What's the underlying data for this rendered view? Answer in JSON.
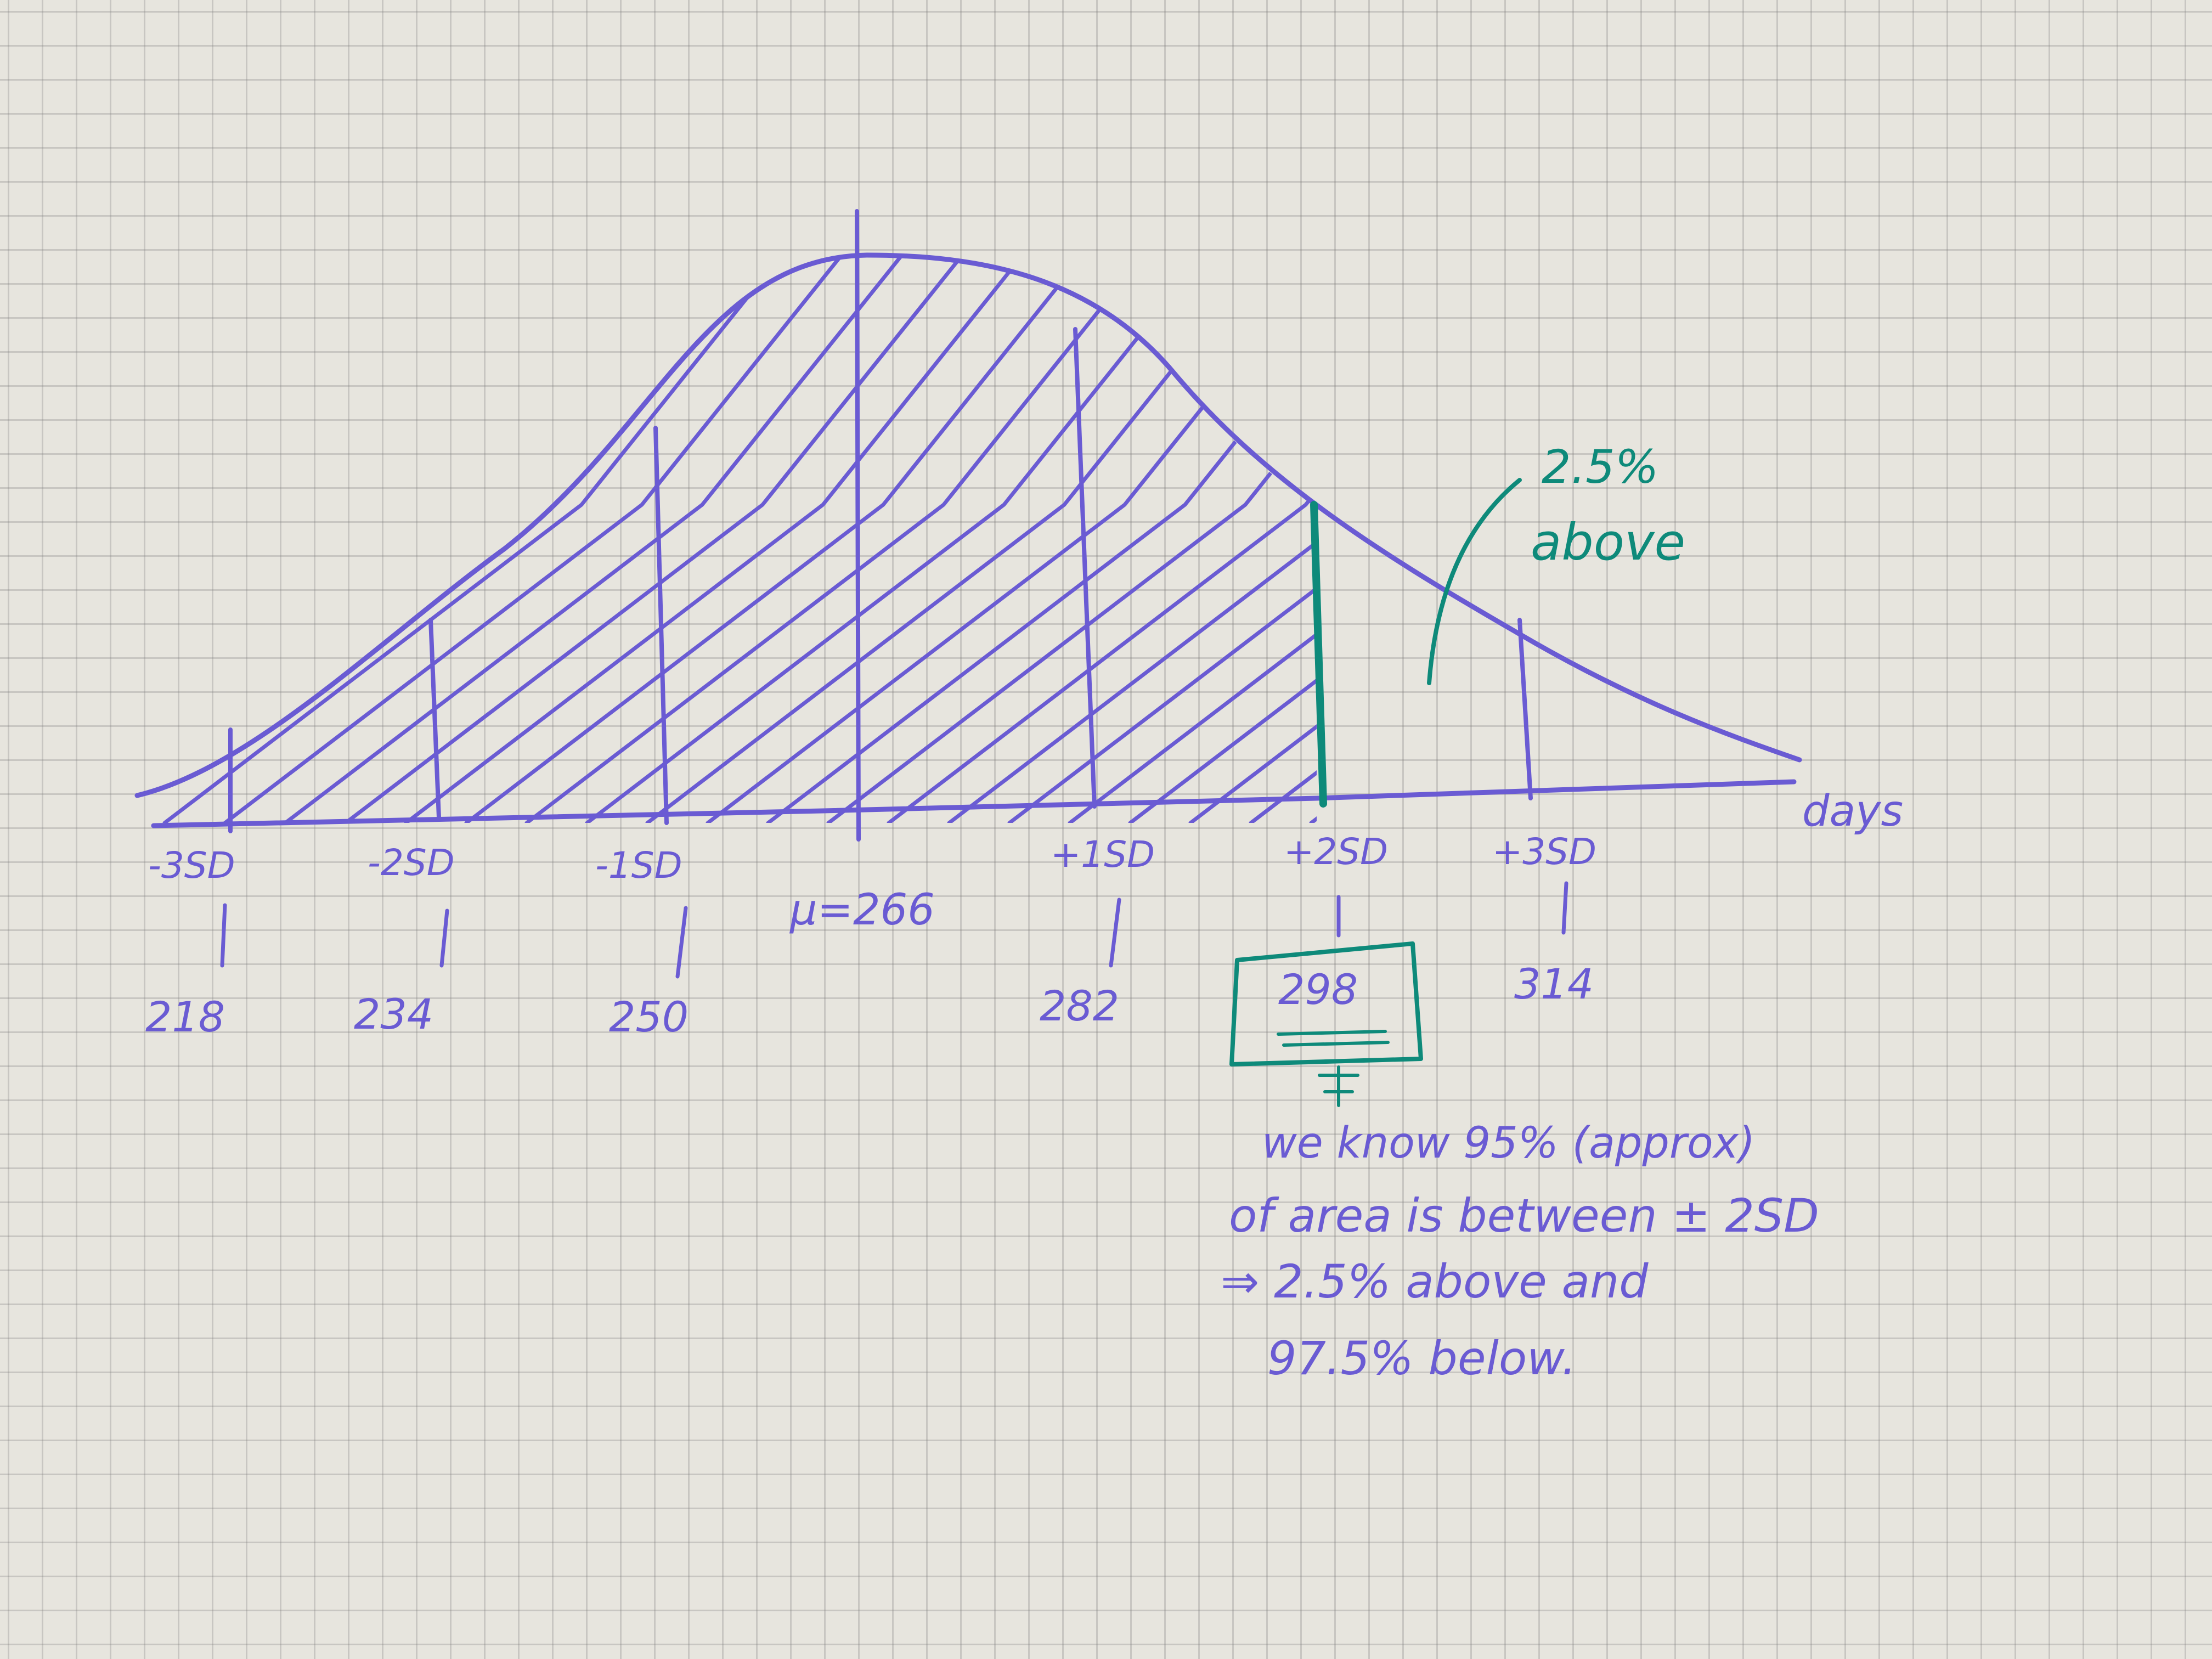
{
  "colors": {
    "ink_purple": "#6a5bd3",
    "ink_teal": "#0e8a7a"
  },
  "axis": {
    "label": "days"
  },
  "mean_label": "μ=266",
  "ticks": [
    {
      "sd_label": "-3SD",
      "value": "218"
    },
    {
      "sd_label": "-2SD",
      "value": "234"
    },
    {
      "sd_label": "-1SD",
      "value": "250"
    },
    {
      "sd_label": "+1SD",
      "value": "282"
    },
    {
      "sd_label": "+2SD",
      "value": "298"
    },
    {
      "sd_label": "+3SD",
      "value": "314"
    }
  ],
  "callout": {
    "line1": "2.5%",
    "line2": "above"
  },
  "note": {
    "line1": "we know 95% (approx)",
    "line2": "of area is between ± 2SD",
    "line3": "⇒ 2.5% above and",
    "line4": "97.5% below."
  }
}
